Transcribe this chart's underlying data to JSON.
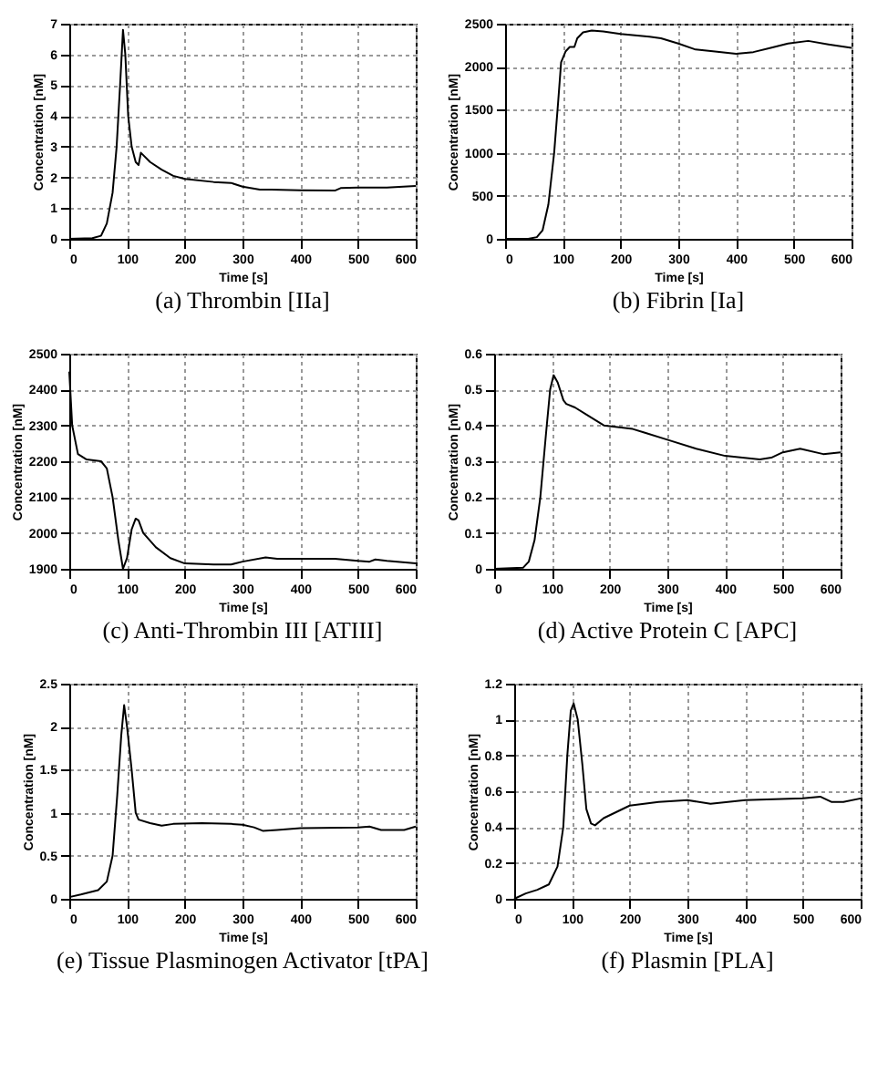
{
  "chart_data": [
    {
      "type": "line",
      "title": "(a) Thrombin   [IIa]",
      "xlabel": "Time [s]",
      "ylabel": "Concentration [nM]",
      "xlim": [
        0,
        600
      ],
      "xticks": [
        0,
        100,
        200,
        300,
        400,
        500,
        600
      ],
      "ylim": [
        0,
        7
      ],
      "yticks": [
        0,
        1,
        2,
        3,
        4,
        5,
        6,
        7
      ],
      "grid": true,
      "x": [
        0,
        40,
        55,
        65,
        75,
        82,
        88,
        93,
        97,
        102,
        108,
        115,
        120,
        124,
        140,
        160,
        180,
        200,
        250,
        280,
        300,
        330,
        350,
        400,
        460,
        470,
        500,
        550,
        600
      ],
      "series": [
        {
          "color": "#000000",
          "values": [
            0,
            0.02,
            0.1,
            0.5,
            1.5,
            3,
            5,
            6.8,
            6,
            4,
            3,
            2.5,
            2.4,
            2.8,
            2.5,
            2.25,
            2.05,
            1.95,
            1.85,
            1.82,
            1.7,
            1.6,
            1.6,
            1.58,
            1.57,
            1.65,
            1.67,
            1.67,
            1.72
          ]
        }
      ]
    },
    {
      "type": "line",
      "title": "(b) Fibrin   [Ia]",
      "xlabel": "Time [s]",
      "ylabel": "Concentration [nM]",
      "xlim": [
        0,
        600
      ],
      "xticks": [
        0,
        100,
        200,
        300,
        400,
        500,
        600
      ],
      "ylim": [
        0,
        2500
      ],
      "yticks": [
        0,
        500,
        1000,
        1500,
        2000,
        2500
      ],
      "grid": true,
      "x": [
        0,
        40,
        55,
        65,
        75,
        85,
        92,
        97,
        105,
        112,
        120,
        125,
        135,
        150,
        170,
        200,
        250,
        270,
        300,
        330,
        360,
        400,
        430,
        460,
        490,
        525,
        560,
        600
      ],
      "series": [
        {
          "color": "#000000",
          "values": [
            0,
            0,
            20,
            100,
            400,
            1000,
            1600,
            2050,
            2180,
            2230,
            2230,
            2330,
            2400,
            2420,
            2410,
            2380,
            2350,
            2330,
            2270,
            2200,
            2180,
            2150,
            2170,
            2220,
            2270,
            2300,
            2260,
            2220
          ]
        }
      ]
    },
    {
      "type": "line",
      "title": "(c) Anti-Thrombin III   [ATIII]",
      "xlabel": "Time [s]",
      "ylabel": "Concentration [nM]",
      "xlim": [
        0,
        600
      ],
      "xticks": [
        0,
        100,
        200,
        300,
        400,
        500,
        600
      ],
      "ylim": [
        1900,
        2500
      ],
      "yticks": [
        1900,
        2000,
        2100,
        2200,
        2300,
        2400,
        2500
      ],
      "grid": true,
      "x": [
        0,
        5,
        15,
        30,
        55,
        65,
        75,
        85,
        93,
        100,
        108,
        115,
        120,
        128,
        150,
        175,
        200,
        250,
        280,
        300,
        340,
        360,
        400,
        460,
        500,
        520,
        530,
        550,
        600
      ],
      "series": [
        {
          "color": "#000000",
          "values": [
            2450,
            2300,
            2220,
            2205,
            2200,
            2180,
            2100,
            1980,
            1900,
            1930,
            2010,
            2040,
            2035,
            2000,
            1960,
            1930,
            1915,
            1912,
            1912,
            1920,
            1932,
            1928,
            1928,
            1928,
            1922,
            1920,
            1926,
            1922,
            1915
          ]
        }
      ]
    },
    {
      "type": "line",
      "title": "(d) Active Protein C   [APC]",
      "xlabel": "Time [s]",
      "ylabel": "Concentration [nM]",
      "xlim": [
        0,
        600
      ],
      "xticks": [
        0,
        100,
        200,
        300,
        400,
        500,
        600
      ],
      "ylim": [
        0,
        0.6
      ],
      "yticks": [
        0,
        0.1,
        0.2,
        0.3,
        0.4,
        0.5,
        0.6
      ],
      "grid": true,
      "x": [
        0,
        50,
        60,
        70,
        80,
        90,
        97,
        103,
        110,
        120,
        125,
        140,
        160,
        190,
        240,
        260,
        300,
        350,
        400,
        460,
        480,
        500,
        530,
        570,
        600
      ],
      "series": [
        {
          "color": "#000000",
          "values": [
            0,
            0.003,
            0.02,
            0.08,
            0.2,
            0.38,
            0.5,
            0.54,
            0.52,
            0.47,
            0.46,
            0.45,
            0.43,
            0.4,
            0.39,
            0.38,
            0.36,
            0.335,
            0.315,
            0.305,
            0.31,
            0.325,
            0.335,
            0.32,
            0.325
          ]
        }
      ]
    },
    {
      "type": "line",
      "title": "(e) Tissue Plasminogen Activator   [tPA]",
      "xlabel": "Time [s]",
      "ylabel": "Concentration [nM]",
      "xlim": [
        0,
        600
      ],
      "xticks": [
        0,
        100,
        200,
        300,
        400,
        500,
        600
      ],
      "ylim": [
        0,
        2.5
      ],
      "yticks": [
        0,
        0.5,
        1,
        1.5,
        2,
        2.5
      ],
      "grid": true,
      "x": [
        0,
        20,
        50,
        65,
        75,
        83,
        90,
        95,
        100,
        108,
        115,
        120,
        140,
        160,
        180,
        230,
        280,
        300,
        320,
        335,
        360,
        400,
        500,
        520,
        540,
        580,
        600
      ],
      "series": [
        {
          "color": "#000000",
          "values": [
            0.02,
            0.05,
            0.1,
            0.2,
            0.5,
            1.2,
            1.9,
            2.25,
            2,
            1.5,
            1,
            0.92,
            0.88,
            0.85,
            0.87,
            0.88,
            0.87,
            0.86,
            0.83,
            0.79,
            0.8,
            0.82,
            0.83,
            0.84,
            0.8,
            0.8,
            0.84
          ]
        }
      ]
    },
    {
      "type": "line",
      "title": "(f) Plasmin   [PLA]",
      "xlabel": "Time [s]",
      "ylabel": "Concentration [nM]",
      "xlim": [
        0,
        600
      ],
      "xticks": [
        0,
        100,
        200,
        300,
        400,
        500,
        600
      ],
      "ylim": [
        0,
        1.2
      ],
      "yticks": [
        0,
        0.2,
        0.4,
        0.6,
        0.8,
        1,
        1.2
      ],
      "grid": true,
      "x": [
        0,
        20,
        40,
        60,
        75,
        85,
        92,
        98,
        103,
        110,
        118,
        125,
        133,
        140,
        155,
        200,
        250,
        300,
        340,
        400,
        500,
        530,
        550,
        570,
        600
      ],
      "series": [
        {
          "color": "#000000",
          "values": [
            0,
            0.03,
            0.05,
            0.08,
            0.18,
            0.4,
            0.8,
            1.05,
            1.09,
            1,
            0.75,
            0.5,
            0.42,
            0.41,
            0.45,
            0.52,
            0.54,
            0.55,
            0.53,
            0.55,
            0.56,
            0.57,
            0.54,
            0.54,
            0.56
          ]
        }
      ]
    }
  ]
}
